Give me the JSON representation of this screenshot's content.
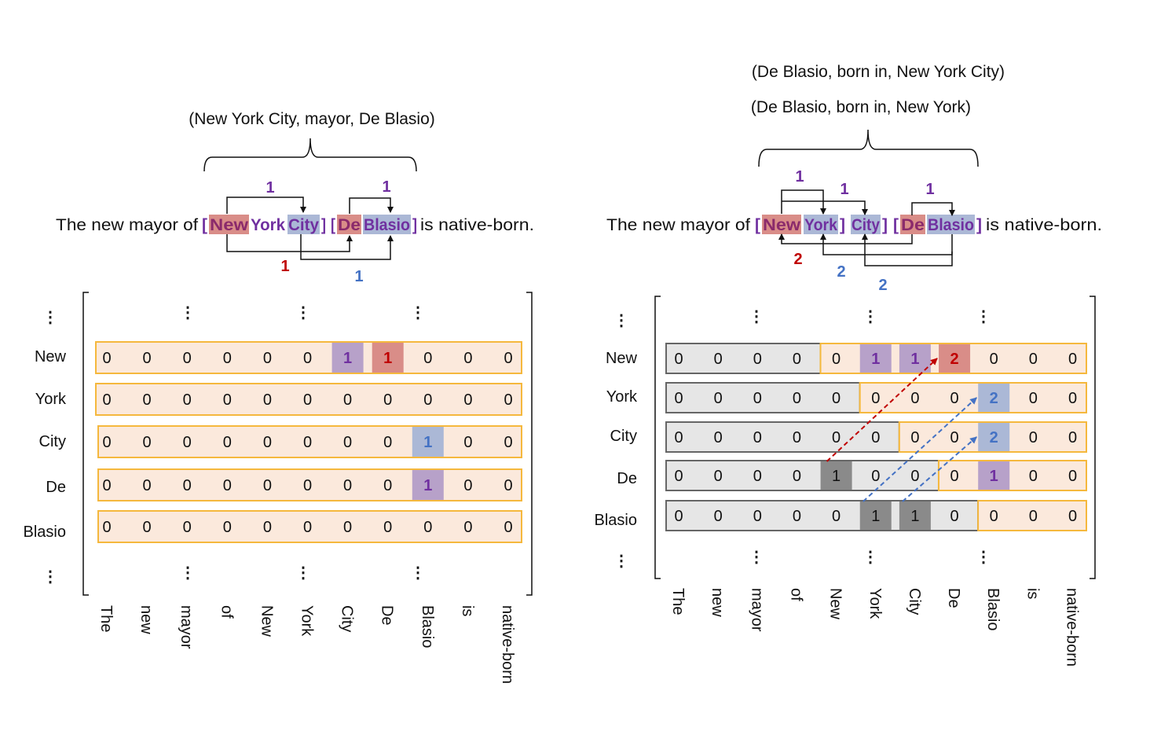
{
  "colors": {
    "purple_text": "#7030a0",
    "purple_fill": "#b7a1c9",
    "red_text": "#c00000",
    "red_fill": "#d98d88",
    "blue_text": "#4472c4",
    "blue_fill": "#abb8d6",
    "dark_fill": "#8a8a8a",
    "row_fill": "#fbe9dc",
    "row_border": "#f5b83d",
    "gray_fill": "#e6e6e6",
    "gray_border": "#666666"
  },
  "left": {
    "triples": [
      "(New York City, mayor, De Blasio)"
    ],
    "sentence": [
      {
        "text": "The new mayor of ",
        "style": "plain"
      },
      {
        "text": "[",
        "style": "bracket"
      },
      {
        "text": "New",
        "style": "entity",
        "highlight": "red"
      },
      {
        "text": "York",
        "style": "entity"
      },
      {
        "text": "City",
        "style": "entity",
        "highlight": "blue"
      },
      {
        "text": "]",
        "style": "bracket"
      },
      {
        "text": "[",
        "style": "bracket"
      },
      {
        "text": "De",
        "style": "entity",
        "highlight": "red"
      },
      {
        "text": "Blasio",
        "style": "entity",
        "highlight": "blue"
      },
      {
        "text": "]",
        "style": "bracket"
      },
      {
        "text": " is native-born.",
        "style": "plain"
      }
    ],
    "link_labels": [
      {
        "text": "1",
        "color": "purple"
      },
      {
        "text": "1",
        "color": "purple"
      },
      {
        "text": "1",
        "color": "red"
      },
      {
        "text": "1",
        "color": "blue"
      }
    ],
    "matrix": {
      "row_labels": [
        "New",
        "York",
        "City",
        "De",
        "Blasio"
      ],
      "col_labels": [
        "The",
        "new",
        "mayor",
        "of",
        "New",
        "York",
        "City",
        "De",
        "Blasio",
        "is",
        "native-born"
      ],
      "rows": [
        [
          0,
          0,
          0,
          0,
          0,
          0,
          1,
          1,
          0,
          0,
          0
        ],
        [
          0,
          0,
          0,
          0,
          0,
          0,
          0,
          0,
          0,
          0,
          0
        ],
        [
          0,
          0,
          0,
          0,
          0,
          0,
          0,
          0,
          1,
          0,
          0
        ],
        [
          0,
          0,
          0,
          0,
          0,
          0,
          0,
          0,
          1,
          0,
          0
        ],
        [
          0,
          0,
          0,
          0,
          0,
          0,
          0,
          0,
          0,
          0,
          0
        ]
      ],
      "highlights": [
        {
          "row": 0,
          "col": 6,
          "color": "purple"
        },
        {
          "row": 0,
          "col": 7,
          "color": "red"
        },
        {
          "row": 2,
          "col": 8,
          "color": "blue"
        },
        {
          "row": 3,
          "col": 8,
          "color": "purple"
        }
      ],
      "gray_cols_per_row": [
        0,
        0,
        0,
        0,
        0
      ],
      "ellipsis": "⋮"
    }
  },
  "right": {
    "triples": [
      "(De Blasio, born in, New York City)",
      "(De Blasio, born in, New York)"
    ],
    "sentence": [
      {
        "text": "The new mayor of ",
        "style": "plain"
      },
      {
        "text": "[",
        "style": "bracket"
      },
      {
        "text": "New",
        "style": "entity",
        "highlight": "red"
      },
      {
        "text": "York",
        "style": "entity",
        "highlight": "blue"
      },
      {
        "text": "]",
        "style": "bracket"
      },
      {
        "text": "City",
        "style": "entity",
        "highlight": "blue"
      },
      {
        "text": "]",
        "style": "bracket"
      },
      {
        "text": "[",
        "style": "bracket"
      },
      {
        "text": "De",
        "style": "entity",
        "highlight": "red"
      },
      {
        "text": "Blasio",
        "style": "entity",
        "highlight": "blue"
      },
      {
        "text": "]",
        "style": "bracket"
      },
      {
        "text": " is native-born.",
        "style": "plain"
      }
    ],
    "link_labels": [
      {
        "text": "1",
        "color": "purple"
      },
      {
        "text": "1",
        "color": "purple"
      },
      {
        "text": "1",
        "color": "purple"
      },
      {
        "text": "2",
        "color": "red"
      },
      {
        "text": "2",
        "color": "blue"
      },
      {
        "text": "2",
        "color": "blue"
      }
    ],
    "matrix": {
      "row_labels": [
        "New",
        "York",
        "City",
        "De",
        "Blasio"
      ],
      "col_labels": [
        "The",
        "new",
        "mayor",
        "of",
        "New",
        "York",
        "City",
        "De",
        "Blasio",
        "is",
        "native-born"
      ],
      "rows": [
        [
          0,
          0,
          0,
          0,
          0,
          1,
          1,
          2,
          0,
          0,
          0
        ],
        [
          0,
          0,
          0,
          0,
          0,
          0,
          0,
          0,
          2,
          0,
          0
        ],
        [
          0,
          0,
          0,
          0,
          0,
          0,
          0,
          0,
          2,
          0,
          0
        ],
        [
          0,
          0,
          0,
          0,
          1,
          0,
          0,
          0,
          1,
          0,
          0
        ],
        [
          0,
          0,
          0,
          0,
          0,
          1,
          1,
          0,
          0,
          0,
          0
        ]
      ],
      "highlights": [
        {
          "row": 0,
          "col": 5,
          "color": "purple"
        },
        {
          "row": 0,
          "col": 6,
          "color": "purple"
        },
        {
          "row": 0,
          "col": 7,
          "color": "red"
        },
        {
          "row": 1,
          "col": 8,
          "color": "blue"
        },
        {
          "row": 2,
          "col": 8,
          "color": "blue"
        },
        {
          "row": 3,
          "col": 4,
          "color": "dark"
        },
        {
          "row": 3,
          "col": 8,
          "color": "purple"
        },
        {
          "row": 4,
          "col": 5,
          "color": "dark"
        },
        {
          "row": 4,
          "col": 6,
          "color": "dark"
        }
      ],
      "gray_cols_per_row": [
        4,
        5,
        6,
        7,
        8
      ],
      "dependencies": [
        {
          "from": [
            3,
            4
          ],
          "to": [
            0,
            7
          ],
          "color": "red"
        },
        {
          "from": [
            4,
            5
          ],
          "to": [
            1,
            8
          ],
          "color": "blue"
        },
        {
          "from": [
            4,
            6
          ],
          "to": [
            2,
            8
          ],
          "color": "blue"
        }
      ],
      "ellipsis": "⋮"
    }
  }
}
